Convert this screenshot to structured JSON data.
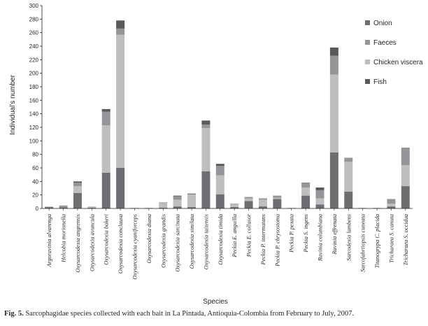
{
  "chart_data": {
    "type": "bar",
    "stacked": true,
    "ylabel": "Individual's number",
    "xlabel": "Species",
    "ylim": [
      0,
      300
    ],
    "ytick_step": 20,
    "grid": false,
    "legend_position": "right",
    "categories": [
      "Argoravinia alvarenga",
      "Helcobia morionella",
      "Oxysarcodexia angrensis",
      "Oxysarcodexia avuncula",
      "Oxysarcodexia bakeri",
      "Oxysarcodexia conclausa",
      "Oxysarcodexia cyaniforceps",
      "Oxysarcodexia diana",
      "Oxysarcodexia grandis",
      "Oxysarcodexia sarcinata",
      "Oxysarcodexia similata",
      "Oxysarcodexia taitensis",
      "Oxysarcodexia timida",
      "Peckia E. anguilla",
      "Peckia E. collusor",
      "Peckia P. intermutans",
      "Peckia P. chrysostoma",
      "Peckia P. pexata",
      "Peckia S. ingens",
      "Ravinia columbiana",
      "Ravinia effrenata",
      "Sarcodexia lambens",
      "Sarcofahrtiopsis cuneata",
      "Titanogrypa C. placida",
      "Tricharaea S. canuta",
      "Tricharaea S. occidua"
    ],
    "series": [
      {
        "name": "Onion",
        "color": "#6d6e71",
        "values": [
          2,
          2,
          23,
          1,
          53,
          60,
          0,
          0,
          1,
          3,
          2,
          55,
          21,
          2,
          11,
          3,
          14,
          0,
          19,
          6,
          83,
          25,
          0,
          0,
          3,
          33
        ]
      },
      {
        "name": "Chicken viscera",
        "color": "#bcbec0",
        "values": [
          1,
          1,
          10,
          2,
          70,
          197,
          1,
          1,
          7,
          10,
          19,
          64,
          28,
          4,
          4,
          10,
          2,
          1,
          12,
          9,
          115,
          44,
          1,
          1,
          4,
          31
        ]
      },
      {
        "name": "Faeces",
        "color": "#939598",
        "values": [
          0,
          0,
          5,
          0,
          20,
          9,
          0,
          0,
          1,
          5,
          0,
          5,
          14,
          1,
          2,
          2,
          3,
          0,
          6,
          12,
          28,
          6,
          0,
          0,
          7,
          26
        ]
      },
      {
        "name": "Fish",
        "color": "#58595b",
        "values": [
          0,
          1,
          2,
          0,
          4,
          12,
          0,
          0,
          0,
          1,
          1,
          6,
          3,
          0,
          0,
          0,
          0,
          0,
          1,
          4,
          12,
          0,
          0,
          0,
          0,
          0
        ]
      }
    ],
    "legend_order": [
      "Onion",
      "Faeces",
      "Chicken viscera",
      "Fish"
    ]
  },
  "caption": {
    "label": "Fig. 5.",
    "text": " Sarcophagidae species collected with each bait in La Pintada, Antioquia-Colombia from February to July, 2007."
  }
}
